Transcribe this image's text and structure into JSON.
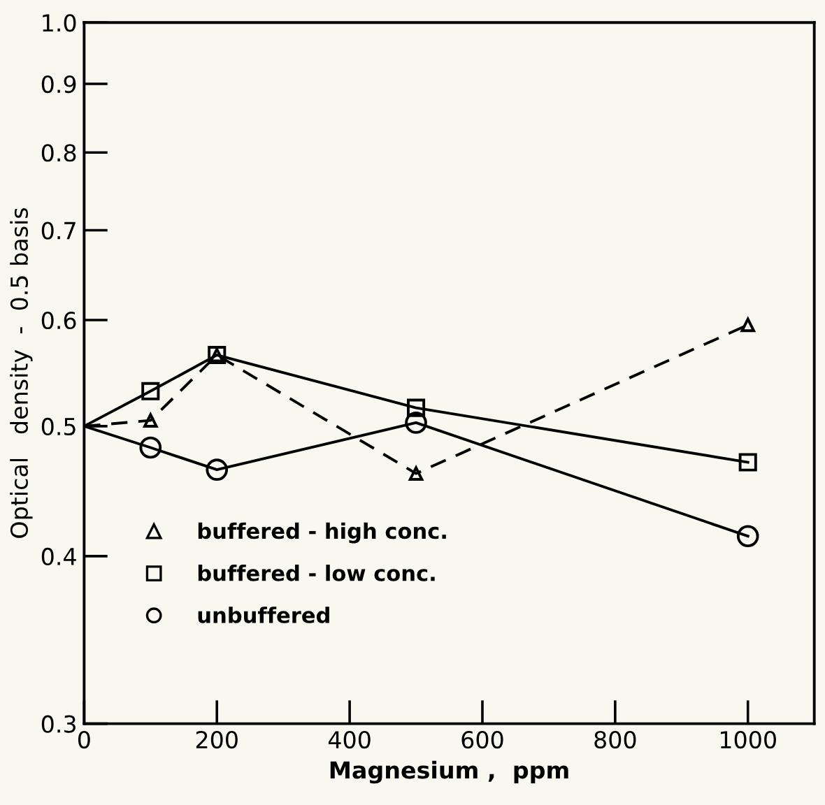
{
  "chart_data": {
    "type": "line",
    "xlabel": "Magnesium ,  ppm",
    "ylabel": "Optical   density  -  0.5 basis",
    "x": [
      0,
      100,
      200,
      500,
      1000
    ],
    "series": [
      {
        "name": "buffered - high conc.",
        "color": "#000000",
        "marker": "triangle",
        "line_style": "dashed",
        "values": [
          0.5,
          0.505,
          0.565,
          0.461,
          0.595
        ]
      },
      {
        "name": "buffered - low conc.",
        "color": "#000000",
        "marker": "square",
        "line_style": "solid",
        "values": [
          0.5,
          0.531,
          0.565,
          0.516,
          0.47
        ]
      },
      {
        "name": "unbuffered",
        "color": "#000000",
        "marker": "circle",
        "line_style": "solid",
        "values": [
          0.5,
          0.482,
          0.464,
          0.503,
          0.414
        ]
      }
    ],
    "log": "y",
    "xlim": [
      0,
      1100
    ],
    "ylim": [
      0.3,
      1.0
    ],
    "xticks": [
      0,
      200,
      400,
      600,
      800,
      1000
    ],
    "yticks": [
      0.3,
      0.4,
      0.5,
      0.6,
      0.7,
      0.8,
      0.9,
      {
        "value": 1.0,
        "label": "1.0"
      }
    ],
    "grid": false,
    "legend": "bottom left"
  }
}
